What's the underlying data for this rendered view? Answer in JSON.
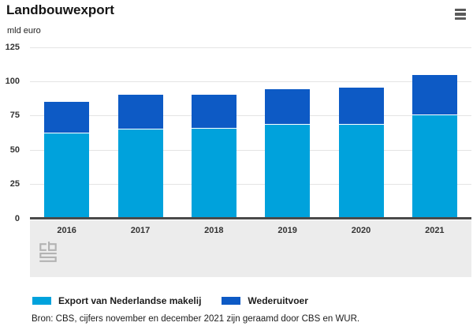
{
  "header": {
    "title": "Landbouwexport",
    "subtitle": "mld euro"
  },
  "chart_data": {
    "type": "bar",
    "stacked": true,
    "title": "Landbouwexport",
    "ylabel": "mld euro",
    "categories": [
      "2016",
      "2017",
      "2018",
      "2019",
      "2020",
      "2021"
    ],
    "series": [
      {
        "name": "Export van Nederlandse makelij",
        "color": "#00a2dc",
        "values": [
          62.3,
          65.2,
          65.6,
          68.6,
          68.3,
          75.7
        ]
      },
      {
        "name": "Wederuitvoer",
        "color": "#0d5ac5",
        "values": [
          22.7,
          25.2,
          24.6,
          25.9,
          27.3,
          29.0
        ]
      }
    ],
    "totals": [
      85.0,
      90.4,
      90.2,
      94.5,
      95.6,
      104.7
    ],
    "ylim": [
      0,
      125
    ],
    "yticks": [
      0,
      25,
      50,
      75,
      100,
      125
    ],
    "grid": true,
    "legend_position": "bottom"
  },
  "icons": {
    "menu": "hamburger-menu",
    "logo": "cbs-logo"
  },
  "colors": {
    "series_light_blue": "#00a2dc",
    "series_dark_blue": "#0d5ac5",
    "gridline": "#e4e4e4",
    "axis_line": "#4a4a4a",
    "band_background": "#ececec"
  },
  "footer": {
    "source": "Bron: CBS, cijfers november en december 2021 zijn geraamd door CBS en WUR."
  }
}
